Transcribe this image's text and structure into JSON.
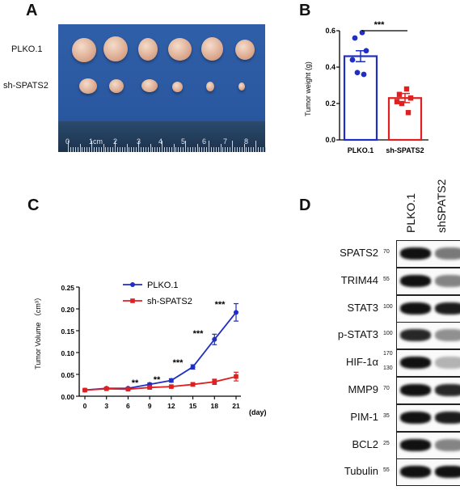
{
  "panel_a": {
    "label": "A",
    "rows": [
      "PLKO.1",
      "sh-SPATS2"
    ],
    "ruler_labels": [
      "0",
      "1cm",
      "2",
      "3",
      "4",
      "5",
      "6",
      "7",
      "8"
    ]
  },
  "panel_b": {
    "label": "B",
    "significance": "***"
  },
  "panel_c": {
    "label": "C",
    "x_unit": "(day)",
    "significance": [
      "**",
      "**",
      "***",
      "***",
      "***"
    ]
  },
  "panel_d": {
    "label": "D",
    "lanes": [
      "PLKO.1",
      "shSPATS2"
    ],
    "blots": [
      {
        "name": "SPATS2",
        "markers": [
          "70"
        ],
        "intensity": [
          1.0,
          0.55
        ]
      },
      {
        "name": "TRIM44",
        "markers": [
          "55"
        ],
        "intensity": [
          1.0,
          0.5
        ]
      },
      {
        "name": "STAT3",
        "markers": [
          "100"
        ],
        "intensity": [
          1.0,
          0.95
        ]
      },
      {
        "name": "p-STAT3",
        "markers": [
          "100"
        ],
        "intensity": [
          0.9,
          0.45
        ]
      },
      {
        "name": "HIF-1α",
        "markers": [
          "170",
          "130"
        ],
        "intensity": [
          1.0,
          0.3
        ]
      },
      {
        "name": "MMP9",
        "markers": [
          "70"
        ],
        "intensity": [
          1.0,
          0.9
        ]
      },
      {
        "name": "PIM-1",
        "markers": [
          "35"
        ],
        "intensity": [
          1.0,
          0.95
        ]
      },
      {
        "name": "BCL2",
        "markers": [
          "25"
        ],
        "intensity": [
          1.0,
          0.5
        ]
      },
      {
        "name": "Tubulin",
        "markers": [
          "55"
        ],
        "intensity": [
          1.0,
          1.0
        ]
      }
    ]
  },
  "chart_data": [
    {
      "type": "bar",
      "panel": "B",
      "categories": [
        "PLKO.1",
        "sh-SPATS2"
      ],
      "values": [
        0.46,
        0.23
      ],
      "errors": [
        0.03,
        0.025
      ],
      "points": [
        [
          0.59,
          0.56,
          0.49,
          0.44,
          0.37,
          0.36
        ],
        [
          0.28,
          0.25,
          0.23,
          0.21,
          0.2,
          0.15
        ]
      ],
      "colors": [
        "#1f2ec4",
        "#e02020"
      ],
      "ylabel": "Tumor weight (g)",
      "ylim": [
        0,
        0.6
      ],
      "yticks": [
        "0.0",
        "0.2",
        "0.4",
        "0.6"
      ],
      "significance": "***"
    },
    {
      "type": "line",
      "panel": "C",
      "x": [
        0,
        3,
        6,
        9,
        12,
        15,
        18,
        21
      ],
      "xlabel": "(day)",
      "ylabel": "Tumor Volume （cm³）",
      "ylim": [
        0,
        0.25
      ],
      "yticks": [
        "0.00",
        "0.05",
        "0.10",
        "0.15",
        "0.20",
        "0.25"
      ],
      "series": [
        {
          "name": "PLKO.1",
          "color": "#1f2ec4",
          "values": [
            0.014,
            0.018,
            0.018,
            0.027,
            0.036,
            0.067,
            0.13,
            0.192
          ],
          "errors": [
            0.002,
            0.002,
            0.002,
            0.003,
            0.004,
            0.005,
            0.012,
            0.02
          ]
        },
        {
          "name": "sh-SPATS2",
          "color": "#e02020",
          "values": [
            0.014,
            0.017,
            0.016,
            0.02,
            0.022,
            0.027,
            0.033,
            0.045
          ],
          "errors": [
            0.002,
            0.002,
            0.002,
            0.002,
            0.002,
            0.004,
            0.006,
            0.01
          ]
        }
      ]
    }
  ]
}
